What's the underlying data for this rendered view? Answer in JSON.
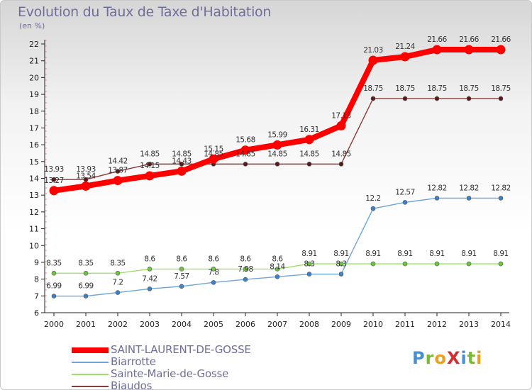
{
  "title": "Evolution du Taux de Taxe d'Habitation",
  "unit": "(en %)",
  "logo": {
    "text": "ProXiti",
    "letters": [
      {
        "ch": "P",
        "color": "#4a90d0"
      },
      {
        "ch": "r",
        "color": "#7ab83a"
      },
      {
        "ch": "o",
        "color": "#e8a020"
      },
      {
        "ch": "X",
        "color": "#d03030"
      },
      {
        "ch": "i",
        "color": "#4a90d0"
      },
      {
        "ch": "t",
        "color": "#7ab83a"
      },
      {
        "ch": "i",
        "color": "#e8a020"
      }
    ]
  },
  "chart_data": {
    "type": "line",
    "title": "Evolution du Taux de Taxe d'Habitation",
    "ylabel": "(en %)",
    "xlabel": "",
    "x": [
      "2000",
      "2001",
      "2002",
      "2003",
      "2004",
      "2005",
      "2006",
      "2007",
      "2008",
      "2009",
      "2010",
      "2011",
      "2012",
      "2013",
      "2014"
    ],
    "ylim": [
      6,
      22
    ],
    "yticks": [
      "6",
      "7",
      "8",
      "9",
      "10",
      "11",
      "12",
      "13",
      "14",
      "15",
      "16",
      "17",
      "18",
      "19",
      "20",
      "21",
      "22"
    ],
    "grid": false,
    "legend_position": "bottom-left",
    "series": [
      {
        "name": "SAINT-LAURENT-DE-GOSSE",
        "color": "#ff0000",
        "marker_color": "#ff0000",
        "values": [
          13.27,
          13.54,
          13.87,
          14.15,
          14.43,
          15.15,
          15.68,
          15.99,
          16.31,
          17.13,
          21.03,
          21.24,
          21.66,
          21.66,
          21.66
        ],
        "labels": [
          "13.27",
          "13.54",
          "13.87",
          "14.15",
          "14.43",
          "15.15",
          "15.68",
          "15.99",
          "16.31",
          "17.13",
          "21.03",
          "21.24",
          "21.66",
          "21.66",
          "21.66"
        ]
      },
      {
        "name": "Biarrotte",
        "color": "#6fa6d6",
        "marker_color": "#3c82c8",
        "values": [
          6.99,
          6.99,
          7.2,
          7.42,
          7.57,
          7.8,
          7.98,
          8.14,
          8.3,
          8.3,
          12.2,
          12.57,
          12.82,
          12.82,
          12.82
        ],
        "labels": [
          "6.99",
          "6.99",
          "7.2",
          "7.42",
          "7.57",
          "7.8",
          "7.98",
          "8.14",
          "8.3",
          "8.3",
          "12.2",
          "12.57",
          "12.82",
          "12.82",
          "12.82"
        ]
      },
      {
        "name": "Sainte-Marie-de-Gosse",
        "color": "#9ee06a",
        "marker_color": "#6ac83a",
        "values": [
          8.35,
          8.35,
          8.35,
          8.6,
          8.6,
          8.6,
          8.6,
          8.6,
          8.91,
          8.91,
          8.91,
          8.91,
          8.91,
          8.91,
          8.91
        ],
        "labels": [
          "8.35",
          "8.35",
          "8.35",
          "8.6",
          "8.6",
          "8.6",
          "8.6",
          "8.6",
          "8.91",
          "8.91",
          "8.91",
          "8.91",
          "8.91",
          "8.91",
          "8.91"
        ]
      },
      {
        "name": "Biaudos",
        "color": "#8a3a3a",
        "marker_color": "#5a1a1a",
        "values": [
          13.93,
          13.93,
          14.42,
          14.85,
          14.85,
          14.85,
          14.85,
          14.85,
          14.85,
          14.85,
          18.75,
          18.75,
          18.75,
          18.75,
          18.75
        ],
        "labels": [
          "13.93",
          "13.93",
          "14.42",
          "14.85",
          "14.85",
          "14.85",
          "14.85",
          "14.85",
          "14.85",
          "14.85",
          "18.75",
          "18.75",
          "18.75",
          "18.75",
          "18.75"
        ]
      }
    ]
  }
}
